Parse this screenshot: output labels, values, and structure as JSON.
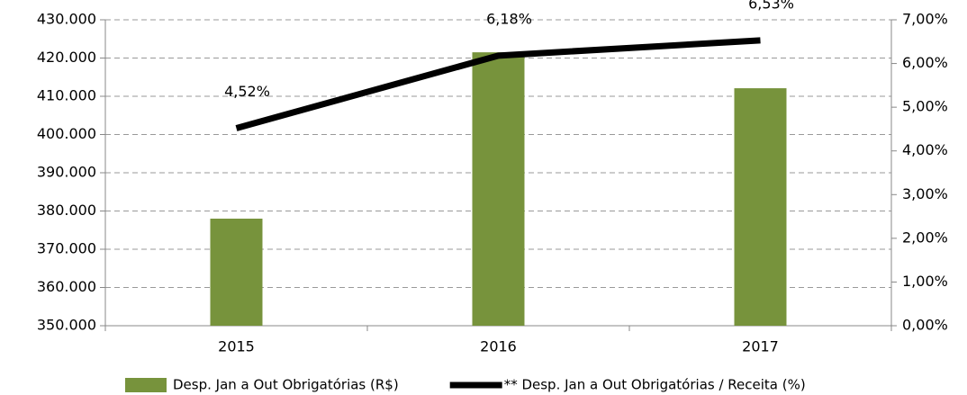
{
  "chart_data": {
    "type": "bar",
    "categories": [
      "2015",
      "2016",
      "2017"
    ],
    "series": [
      {
        "name": "Desp. Jan a Out Obrigatórias (R$)",
        "color": "#77933c",
        "values": [
          378000,
          421500,
          412100
        ]
      },
      {
        "name": "** Desp. Jan a Out Obrigatórias / Receita (%)",
        "type": "line",
        "axis": "y2",
        "color": "#000000",
        "values": [
          4.52,
          6.18,
          6.53
        ],
        "value_labels": [
          "4,52%",
          "6,18%",
          "6,53%"
        ]
      }
    ],
    "ylim": [
      350000,
      430000
    ],
    "yticks": [
      {
        "value": 350000,
        "label": "350.000"
      },
      {
        "value": 360000,
        "label": "360.000"
      },
      {
        "value": 370000,
        "label": "370.000"
      },
      {
        "value": 380000,
        "label": "380.000"
      },
      {
        "value": 390000,
        "label": "390.000"
      },
      {
        "value": 400000,
        "label": "400.000"
      },
      {
        "value": 410000,
        "label": "410.000"
      },
      {
        "value": 420000,
        "label": "420.000"
      },
      {
        "value": 430000,
        "label": "430.000"
      }
    ],
    "y2lim": [
      0,
      7
    ],
    "y2ticks": [
      {
        "value": 0,
        "label": "0,00%"
      },
      {
        "value": 1,
        "label": "1,00%"
      },
      {
        "value": 2,
        "label": "2,00%"
      },
      {
        "value": 3,
        "label": "3,00%"
      },
      {
        "value": 4,
        "label": "4,00%"
      },
      {
        "value": 5,
        "label": "5,00%"
      },
      {
        "value": 6,
        "label": "6,00%"
      },
      {
        "value": 7,
        "label": "7,00%"
      }
    ],
    "grid": true,
    "legend": "bottom"
  }
}
